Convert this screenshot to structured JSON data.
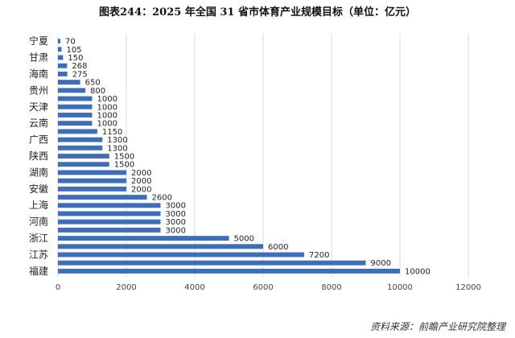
{
  "title": "图表244：2025 年全国 31 省市体育产业规模目标（单位：亿元）",
  "source": "资料来源：前瞻产业研究院整理",
  "chart_data": {
    "type": "bar",
    "orientation": "horizontal",
    "categories": [
      "宁夏",
      "",
      "甘肃",
      "",
      "海南",
      "",
      "贵州",
      "",
      "天津",
      "",
      "云南",
      "",
      "广西",
      "",
      "陕西",
      "",
      "湖南",
      "",
      "安徽",
      "",
      "上海",
      "",
      "河南",
      "",
      "浙江",
      "",
      "江苏",
      "",
      "福建"
    ],
    "values": [
      70,
      105,
      150,
      268,
      275,
      650,
      800,
      1000,
      1000,
      1000,
      1000,
      1150,
      1300,
      1300,
      1500,
      1500,
      2000,
      2000,
      2000,
      2600,
      3000,
      3000,
      3000,
      3000,
      5000,
      6000,
      7200,
      9000,
      10000
    ],
    "data_labels": [
      "70",
      "105",
      "150",
      "268",
      "275",
      "650",
      "800",
      "1000",
      "1000",
      "1000",
      "1000",
      "1150",
      "1300",
      "1300",
      "1500",
      "1500",
      "2000",
      "2000",
      "2000",
      "2600",
      "3000",
      "3000",
      "3000",
      "3000",
      "5000",
      "6000",
      "7200",
      "9000",
      "10000"
    ],
    "x_ticks": [
      0,
      2000,
      4000,
      6000,
      8000,
      10000,
      12000
    ],
    "xlim": [
      0,
      12000
    ],
    "grid": true,
    "bar_color": "#3e6eb8"
  }
}
